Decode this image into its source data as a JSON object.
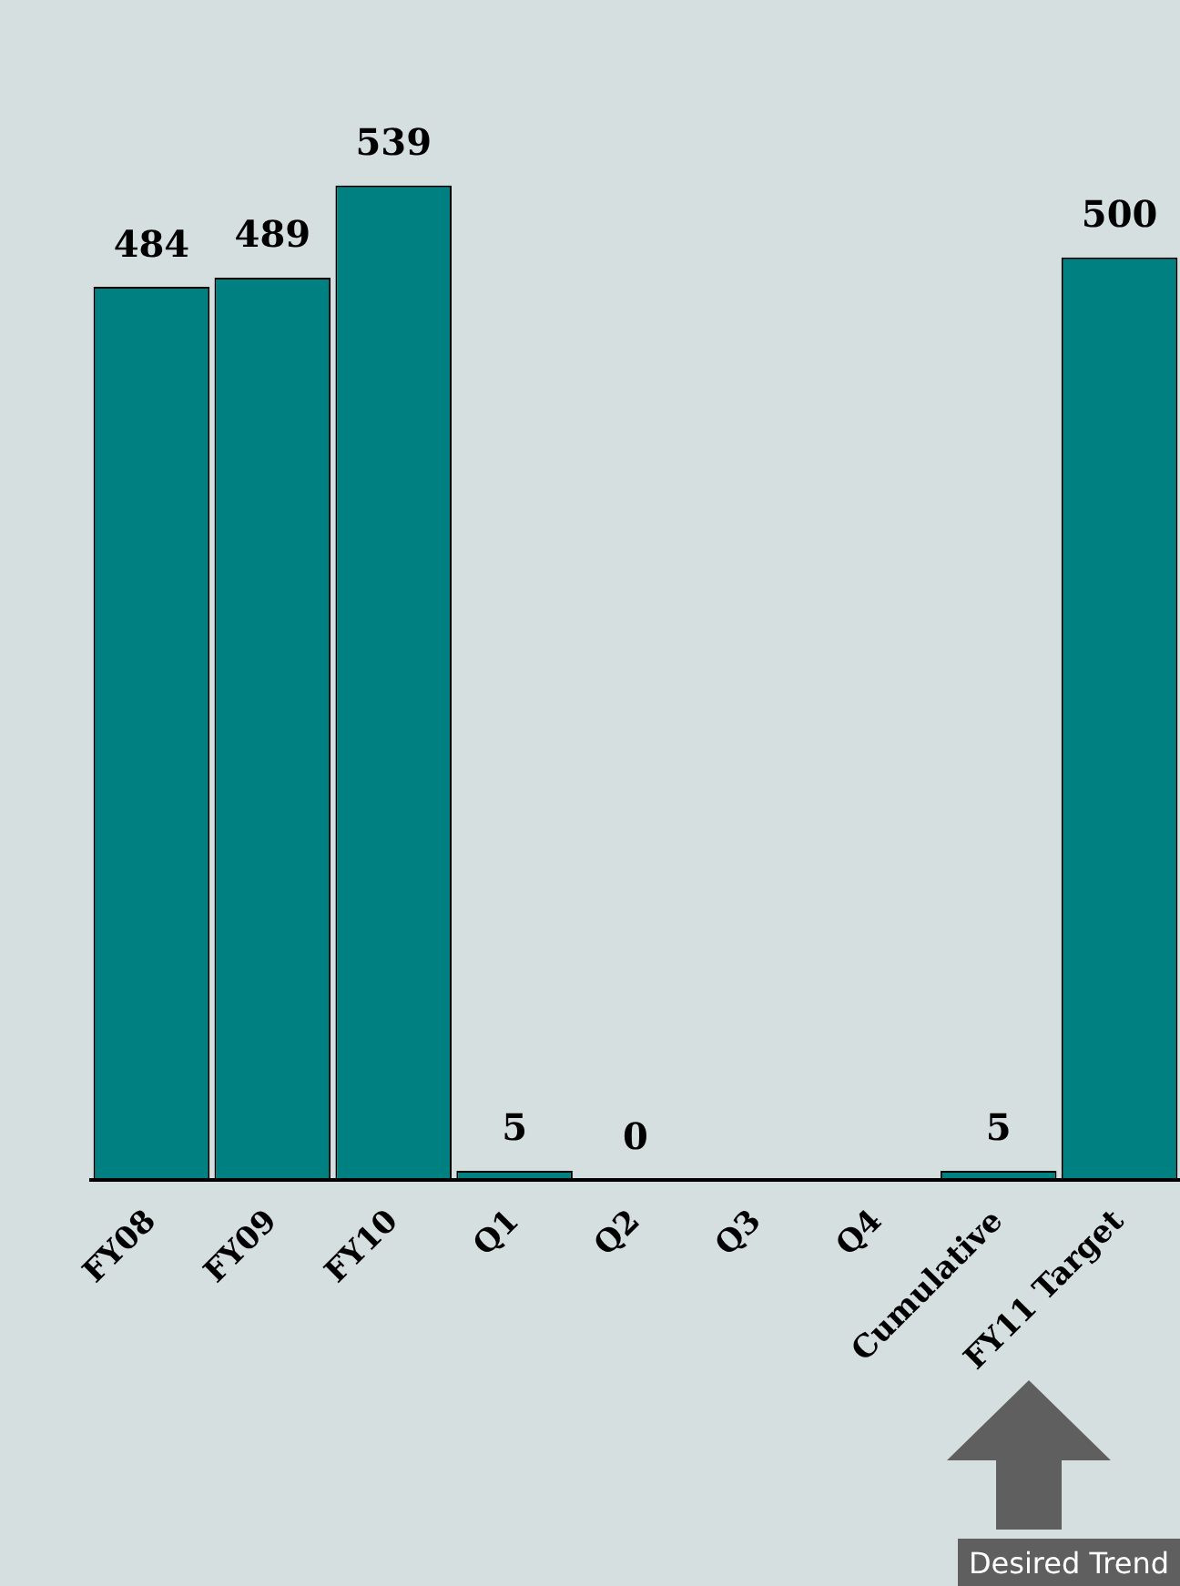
{
  "chart_data": {
    "type": "bar",
    "categories": [
      "FY08",
      "FY09",
      "FY10",
      "Q1",
      "Q2",
      "Q3",
      "Q4",
      "Cumulative",
      "FY11 Target"
    ],
    "values": [
      484,
      489,
      539,
      5,
      0,
      null,
      null,
      5,
      500
    ],
    "value_labels": [
      "484",
      "489",
      "539",
      "5",
      "0",
      null,
      null,
      "5",
      "500"
    ],
    "color": "#008080",
    "grid": false,
    "legend": false,
    "annotations": [
      "Desired Trend"
    ]
  }
}
